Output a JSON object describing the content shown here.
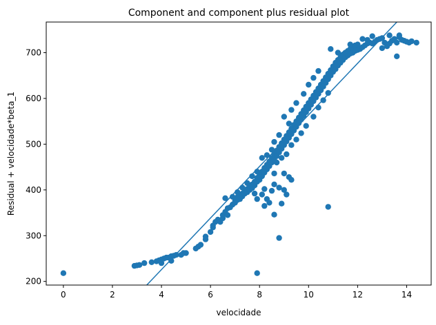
{
  "chart_data": {
    "type": "scatter",
    "title": "Component and component plus residual plot",
    "xlabel": "velocidade",
    "ylabel": "Residual + velocidade*beta_1",
    "xlim": [
      -0.7,
      15.0
    ],
    "ylim": [
      192,
      767
    ],
    "xticks": [
      0,
      2,
      4,
      6,
      8,
      10,
      12,
      14
    ],
    "yticks": [
      200,
      300,
      400,
      500,
      600,
      700
    ],
    "grid": false,
    "legend": "none",
    "colors": {
      "points": "#1f77b4",
      "line": "#1f77b4"
    },
    "fit_line": {
      "points": [
        [
          3.4,
          192
        ],
        [
          13.6,
          767
        ]
      ]
    },
    "series": [
      {
        "points": [
          [
            0.0,
            218
          ],
          [
            2.9,
            234
          ],
          [
            3.0,
            235
          ],
          [
            3.1,
            236
          ],
          [
            3.3,
            240
          ],
          [
            3.6,
            242
          ],
          [
            3.8,
            244
          ],
          [
            3.9,
            246
          ],
          [
            4.0,
            248
          ],
          [
            4.1,
            250
          ],
          [
            4.2,
            252
          ],
          [
            4.3,
            252
          ],
          [
            4.4,
            255
          ],
          [
            4.5,
            256
          ],
          [
            4.6,
            258
          ],
          [
            4.8,
            258
          ],
          [
            4.9,
            262
          ],
          [
            5.0,
            262
          ],
          [
            4.4,
            245
          ],
          [
            4.0,
            240
          ],
          [
            5.4,
            272
          ],
          [
            5.5,
            276
          ],
          [
            5.6,
            280
          ],
          [
            5.8,
            292
          ],
          [
            5.8,
            298
          ],
          [
            6.0,
            308
          ],
          [
            6.1,
            318
          ],
          [
            6.1,
            322
          ],
          [
            6.2,
            330
          ],
          [
            6.3,
            335
          ],
          [
            6.4,
            330
          ],
          [
            6.5,
            338
          ],
          [
            6.5,
            345
          ],
          [
            6.6,
            352
          ],
          [
            6.6,
            382
          ],
          [
            6.7,
            345
          ],
          [
            6.7,
            360
          ],
          [
            6.8,
            362
          ],
          [
            6.9,
            368
          ],
          [
            6.9,
            385
          ],
          [
            7.0,
            372
          ],
          [
            7.0,
            376
          ],
          [
            7.1,
            378
          ],
          [
            7.1,
            384
          ],
          [
            7.2,
            380
          ],
          [
            7.2,
            388
          ],
          [
            7.3,
            386
          ],
          [
            7.3,
            392
          ],
          [
            7.4,
            392
          ],
          [
            7.4,
            398
          ],
          [
            7.5,
            395
          ],
          [
            7.5,
            402
          ],
          [
            7.6,
            400
          ],
          [
            7.6,
            408
          ],
          [
            7.7,
            404
          ],
          [
            7.7,
            412
          ],
          [
            7.8,
            410
          ],
          [
            7.8,
            418
          ],
          [
            7.9,
            418
          ],
          [
            7.9,
            426
          ],
          [
            8.0,
            422
          ],
          [
            8.0,
            432
          ],
          [
            8.1,
            430
          ],
          [
            8.1,
            440
          ],
          [
            8.2,
            438
          ],
          [
            8.2,
            448
          ],
          [
            8.3,
            445
          ],
          [
            8.3,
            455
          ],
          [
            8.4,
            452
          ],
          [
            8.4,
            462
          ],
          [
            8.5,
            460
          ],
          [
            8.5,
            470
          ],
          [
            8.6,
            466
          ],
          [
            8.6,
            478
          ],
          [
            8.7,
            474
          ],
          [
            8.7,
            486
          ],
          [
            8.8,
            482
          ],
          [
            8.8,
            494
          ],
          [
            8.9,
            490
          ],
          [
            8.9,
            502
          ],
          [
            9.0,
            498
          ],
          [
            9.0,
            510
          ],
          [
            9.1,
            506
          ],
          [
            9.1,
            518
          ],
          [
            9.2,
            514
          ],
          [
            9.2,
            526
          ],
          [
            9.3,
            522
          ],
          [
            9.3,
            534
          ],
          [
            9.4,
            530
          ],
          [
            9.4,
            542
          ],
          [
            9.5,
            538
          ],
          [
            9.5,
            550
          ],
          [
            9.6,
            546
          ],
          [
            9.6,
            558
          ],
          [
            9.7,
            554
          ],
          [
            9.7,
            566
          ],
          [
            9.8,
            562
          ],
          [
            9.8,
            574
          ],
          [
            9.9,
            570
          ],
          [
            9.9,
            582
          ],
          [
            10.0,
            578
          ],
          [
            10.0,
            590
          ],
          [
            10.1,
            586
          ],
          [
            10.1,
            598
          ],
          [
            10.2,
            594
          ],
          [
            10.2,
            606
          ],
          [
            10.3,
            602
          ],
          [
            10.3,
            614
          ],
          [
            10.4,
            610
          ],
          [
            10.4,
            622
          ],
          [
            10.5,
            618
          ],
          [
            10.5,
            630
          ],
          [
            10.6,
            626
          ],
          [
            10.6,
            638
          ],
          [
            10.7,
            634
          ],
          [
            10.7,
            646
          ],
          [
            10.8,
            642
          ],
          [
            10.8,
            654
          ],
          [
            10.9,
            650
          ],
          [
            10.9,
            662
          ],
          [
            11.0,
            658
          ],
          [
            11.0,
            670
          ],
          [
            11.1,
            664
          ],
          [
            11.1,
            678
          ],
          [
            11.2,
            672
          ],
          [
            11.2,
            684
          ],
          [
            11.3,
            678
          ],
          [
            11.3,
            690
          ],
          [
            11.4,
            684
          ],
          [
            11.4,
            696
          ],
          [
            11.5,
            690
          ],
          [
            11.5,
            700
          ],
          [
            11.6,
            694
          ],
          [
            11.6,
            704
          ],
          [
            11.7,
            698
          ],
          [
            11.7,
            708
          ],
          [
            11.8,
            700
          ],
          [
            11.8,
            712
          ],
          [
            11.9,
            704
          ],
          [
            11.9,
            716
          ],
          [
            12.0,
            706
          ],
          [
            12.0,
            718
          ],
          [
            12.1,
            708
          ],
          [
            12.2,
            712
          ],
          [
            12.3,
            716
          ],
          [
            12.4,
            720
          ],
          [
            12.5,
            722
          ],
          [
            12.6,
            720
          ],
          [
            12.7,
            724
          ],
          [
            12.8,
            728
          ],
          [
            12.9,
            730
          ],
          [
            13.0,
            732
          ],
          [
            13.1,
            722
          ],
          [
            13.2,
            714
          ],
          [
            13.3,
            720
          ],
          [
            13.4,
            726
          ],
          [
            13.5,
            730
          ],
          [
            13.6,
            722
          ],
          [
            13.7,
            734
          ],
          [
            13.8,
            728
          ],
          [
            13.9,
            726
          ],
          [
            14.0,
            724
          ],
          [
            14.1,
            722
          ],
          [
            14.2,
            725
          ],
          [
            14.4,
            722
          ],
          [
            12.6,
            736
          ],
          [
            13.3,
            738
          ],
          [
            13.7,
            738
          ],
          [
            12.2,
            730
          ],
          [
            10.9,
            708
          ],
          [
            11.2,
            700
          ],
          [
            11.7,
            718
          ],
          [
            12.4,
            728
          ],
          [
            13.6,
            692
          ],
          [
            13.0,
            710
          ],
          [
            8.1,
            470
          ],
          [
            8.3,
            476
          ],
          [
            8.5,
            488
          ],
          [
            8.7,
            460
          ],
          [
            8.9,
            470
          ],
          [
            9.1,
            478
          ],
          [
            9.3,
            498
          ],
          [
            9.5,
            510
          ],
          [
            9.7,
            524
          ],
          [
            9.9,
            540
          ],
          [
            10.2,
            560
          ],
          [
            10.4,
            580
          ],
          [
            10.6,
            596
          ],
          [
            10.8,
            612
          ],
          [
            9.0,
            560
          ],
          [
            9.3,
            575
          ],
          [
            9.5,
            590
          ],
          [
            9.8,
            610
          ],
          [
            10.0,
            630
          ],
          [
            10.2,
            645
          ],
          [
            10.4,
            660
          ],
          [
            9.2,
            545
          ],
          [
            8.8,
            520
          ],
          [
            8.6,
            505
          ],
          [
            7.9,
            440
          ],
          [
            7.7,
            430
          ],
          [
            7.5,
            415
          ],
          [
            7.3,
            405
          ],
          [
            7.1,
            395
          ],
          [
            7.8,
            392
          ],
          [
            8.2,
            402
          ],
          [
            8.6,
            412
          ],
          [
            8.8,
            405
          ],
          [
            9.0,
            400
          ],
          [
            9.1,
            390
          ],
          [
            8.5,
            398
          ],
          [
            8.6,
            436
          ],
          [
            9.2,
            428
          ],
          [
            9.3,
            422
          ],
          [
            9.0,
            436
          ],
          [
            7.9,
            380
          ],
          [
            8.1,
            390
          ],
          [
            8.3,
            380
          ],
          [
            8.4,
            372
          ],
          [
            8.2,
            365
          ],
          [
            8.6,
            346
          ],
          [
            8.9,
            370
          ],
          [
            8.8,
            295
          ],
          [
            7.9,
            218
          ],
          [
            10.8,
            363
          ]
        ]
      }
    ]
  }
}
